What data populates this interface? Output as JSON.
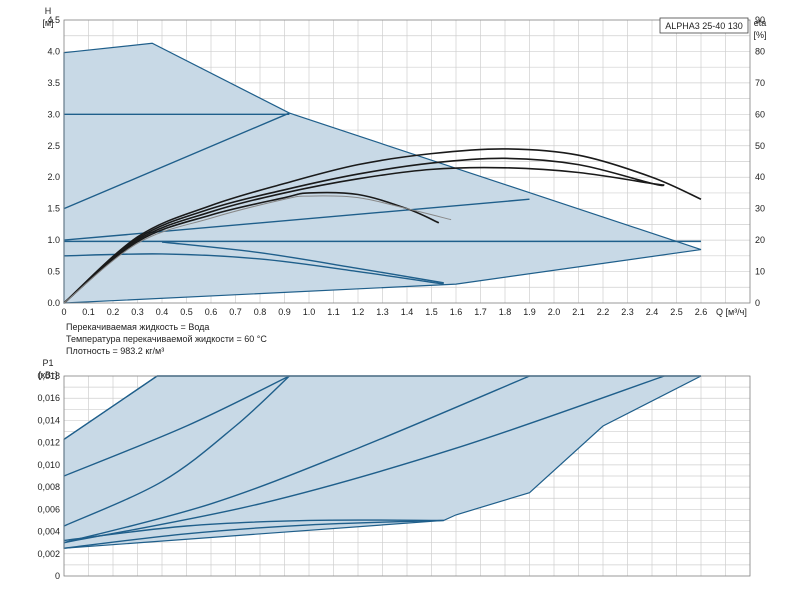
{
  "title": "ALPHA3 25-40 130",
  "conditions": [
    "Перекачиваемая жидкость = Вода",
    "Температура перекачиваемой жидкости = 60 °C",
    "Плотность = 983.2 кг/м³"
  ],
  "chart_data": [
    {
      "type": "line",
      "title": "ALPHA3 25-40 130",
      "ylabel": "H",
      "ylabel_unit": "[м]",
      "y2label": "eta",
      "y2label_unit": "[%]",
      "xlabel": "Q [м³/ч]",
      "xlim": [
        0,
        2.8
      ],
      "ylim": [
        0,
        4.5
      ],
      "y2lim": [
        0,
        90
      ],
      "grid": true,
      "x_ticks": [
        "0",
        "0.1",
        "0.2",
        "0.3",
        "0.4",
        "0.5",
        "0.6",
        "0.7",
        "0.8",
        "0.9",
        "1.0",
        "1.1",
        "1.2",
        "1.3",
        "1.4",
        "1.5",
        "1.6",
        "1.7",
        "1.8",
        "1.9",
        "2.0",
        "2.1",
        "2.2",
        "2.3",
        "2.4",
        "2.5",
        "2.6"
      ],
      "y_ticks": [
        "0.0",
        "0.5",
        "1.0",
        "1.5",
        "2.0",
        "2.5",
        "3.0",
        "3.5",
        "4.0",
        "4.5"
      ],
      "y2_ticks": [
        "0",
        "10",
        "20",
        "30",
        "40",
        "50",
        "60",
        "70",
        "80",
        "90"
      ],
      "envelope": {
        "x": [
          0,
          0.36,
          0.92,
          2.6,
          1.6,
          0
        ],
        "y": [
          3.98,
          4.13,
          3.02,
          0.85,
          0.3,
          0
        ]
      },
      "series": [
        {
          "kind": "control",
          "x": [
            0,
            0.92
          ],
          "y": [
            3.0,
            3.0
          ]
        },
        {
          "kind": "control",
          "x": [
            0,
            0.92
          ],
          "y": [
            1.5,
            3.02
          ]
        },
        {
          "kind": "control",
          "x": [
            0,
            1.9
          ],
          "y": [
            1.0,
            1.65
          ]
        },
        {
          "kind": "control",
          "x": [
            0,
            2.6
          ],
          "y": [
            0.98,
            0.98
          ]
        },
        {
          "kind": "control",
          "x": [
            0,
            0.4,
            0.8,
            1.2,
            1.55
          ],
          "y": [
            0.75,
            0.78,
            0.7,
            0.5,
            0.3
          ]
        },
        {
          "kind": "control",
          "x": [
            0.4,
            0.8,
            1.2,
            1.55
          ],
          "y": [
            0.97,
            0.8,
            0.55,
            0.32
          ]
        },
        {
          "kind": "efficiency",
          "x": [
            0,
            0.3,
            0.6,
            0.9,
            1.2,
            1.5,
            1.8,
            2.1,
            2.4,
            2.6
          ],
          "y": [
            0,
            21,
            31,
            38,
            44,
            47.5,
            49,
            47,
            40,
            33
          ]
        },
        {
          "kind": "efficiency",
          "x": [
            0,
            0.3,
            0.6,
            0.9,
            1.2,
            1.5,
            1.8,
            2.1,
            2.4,
            2.45
          ],
          "y": [
            0,
            20.5,
            30,
            36,
            41,
            44.5,
            46,
            44,
            38,
            37.5
          ]
        },
        {
          "kind": "efficiency",
          "x": [
            0,
            0.3,
            0.6,
            0.9,
            1.2,
            1.5,
            1.8,
            2.1,
            2.4,
            2.45
          ],
          "y": [
            0,
            20,
            29,
            35,
            39.5,
            42.5,
            43,
            41.5,
            38,
            37.5
          ]
        },
        {
          "kind": "efficiency",
          "x": [
            0,
            0.3,
            0.6,
            0.9,
            1.0,
            1.2,
            1.4,
            1.53
          ],
          "y": [
            0,
            19.5,
            28,
            33.5,
            35,
            34.5,
            30,
            25.5
          ]
        },
        {
          "kind": "efficiency-thin",
          "x": [
            0,
            0.3,
            0.6,
            0.9,
            1.0,
            1.2,
            1.4,
            1.58
          ],
          "y": [
            0,
            19,
            27,
            33,
            34,
            33.5,
            30,
            26.5
          ]
        }
      ]
    },
    {
      "type": "line",
      "ylabel": "P1",
      "ylabel_unit": "[кВт]",
      "xlim": [
        0,
        2.8
      ],
      "ylim": [
        0,
        0.018
      ],
      "grid": true,
      "y_ticks": [
        "0",
        "0,002",
        "0,004",
        "0,006",
        "0,008",
        "0,010",
        "0,012",
        "0,014",
        "0,016",
        "0,018"
      ],
      "envelope": {
        "x": [
          0,
          0.38,
          2.6,
          2.2,
          1.9,
          1.6,
          1.55,
          0
        ],
        "y": [
          0.0123,
          0.018,
          0.018,
          0.0135,
          0.0075,
          0.0055,
          0.005,
          0.0025
        ]
      },
      "series": [
        {
          "kind": "control",
          "x": [
            0,
            0.38
          ],
          "y": [
            0.0123,
            0.018
          ]
        },
        {
          "kind": "control",
          "x": [
            0.38,
            2.6
          ],
          "y": [
            0.018,
            0.018
          ]
        },
        {
          "kind": "control",
          "x": [
            0,
            0.5,
            0.92
          ],
          "y": [
            0.009,
            0.0135,
            0.018
          ]
        },
        {
          "kind": "control",
          "x": [
            0,
            0.4,
            0.7,
            0.92
          ],
          "y": [
            0.0045,
            0.0085,
            0.0135,
            0.018
          ]
        },
        {
          "kind": "control",
          "x": [
            0,
            0.6,
            1.2,
            1.9
          ],
          "y": [
            0.003,
            0.0065,
            0.0115,
            0.018
          ]
        },
        {
          "kind": "control",
          "x": [
            0,
            0.8,
            1.6,
            2.45
          ],
          "y": [
            0.003,
            0.0065,
            0.0115,
            0.018
          ]
        },
        {
          "kind": "control",
          "x": [
            0,
            0.5,
            1.0,
            1.55
          ],
          "y": [
            0.0032,
            0.0045,
            0.005,
            0.005
          ]
        },
        {
          "kind": "control",
          "x": [
            0,
            0.5,
            1.0,
            1.55
          ],
          "y": [
            0.0025,
            0.0038,
            0.0046,
            0.005
          ]
        }
      ]
    }
  ]
}
